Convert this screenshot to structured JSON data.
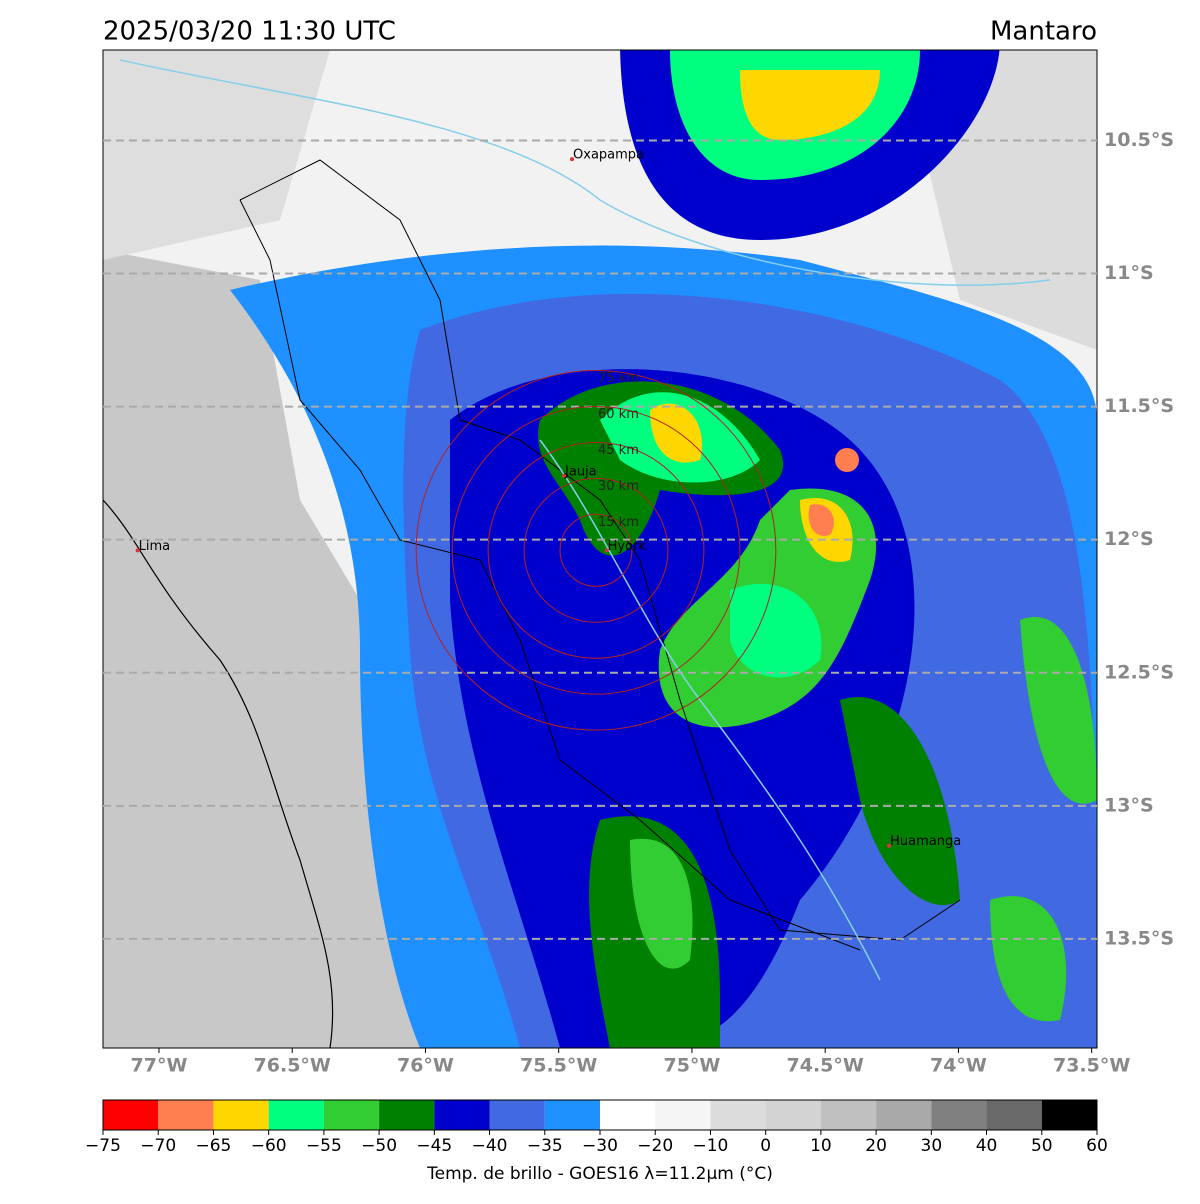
{
  "title": "2025/03/20 11:30 UTC",
  "region": "Mantaro",
  "map": {
    "lonlim": [
      -77.21,
      -73.48
    ],
    "latlim": [
      -10.16,
      -13.91
    ],
    "lonticks": [
      {
        "value": -77,
        "label": "77°W"
      },
      {
        "value": -76.5,
        "label": "76.5°W"
      },
      {
        "value": -76,
        "label": "76°W"
      },
      {
        "value": -75.5,
        "label": "75.5°W"
      },
      {
        "value": -75,
        "label": "75°W"
      },
      {
        "value": -74.5,
        "label": "74.5°W"
      },
      {
        "value": -74,
        "label": "74°W"
      },
      {
        "value": -73.5,
        "label": "73.5°W"
      }
    ],
    "latticks": [
      {
        "value": -10.5,
        "label": "10.5°S"
      },
      {
        "value": -11,
        "label": "11°S"
      },
      {
        "value": -11.5,
        "label": "11.5°S"
      },
      {
        "value": -12,
        "label": "12°S"
      },
      {
        "value": -12.5,
        "label": "12.5°S"
      },
      {
        "value": -13,
        "label": "13°S"
      },
      {
        "value": -13.5,
        "label": "13.5°S"
      }
    ],
    "cities": [
      {
        "name": "Oxapampa",
        "lon": -75.45,
        "lat": -10.57
      },
      {
        "name": "Lima",
        "lon": -77.08,
        "lat": -12.04
      },
      {
        "name": "Jauja",
        "lon": -75.48,
        "lat": -11.76
      },
      {
        "name": "Hyork",
        "lon": -75.32,
        "lat": -12.04
      },
      {
        "name": "Huamanga",
        "lon": -74.26,
        "lat": -13.15
      }
    ],
    "rings": {
      "center_lon": -75.36,
      "center_lat": -12.04,
      "radii_km": [
        15,
        30,
        45,
        60,
        75
      ],
      "labels": [
        "15 km",
        "30 km",
        "45 km",
        "60 km",
        "75 km"
      ]
    }
  },
  "colorbar": {
    "bounds": [
      {
        "value": -75,
        "label": "−75"
      },
      {
        "value": -70,
        "label": "−70"
      },
      {
        "value": -65,
        "label": "−65"
      },
      {
        "value": -60,
        "label": "−60"
      },
      {
        "value": -55,
        "label": "−55"
      },
      {
        "value": -50,
        "label": "−50"
      },
      {
        "value": -45,
        "label": "−45"
      },
      {
        "value": -40,
        "label": "−40"
      },
      {
        "value": -35,
        "label": "−35"
      },
      {
        "value": -30,
        "label": "−30"
      },
      {
        "value": -20,
        "label": "−20"
      },
      {
        "value": -10,
        "label": "−10"
      },
      0,
      10,
      20,
      30,
      40,
      50,
      60
    ],
    "colors": [
      "#ff0000",
      "#ff7f50",
      "#ffd700",
      "#00ff7f",
      "#32cd32",
      "#008000",
      "#0000cd",
      "#4169e1",
      "#1e90ff",
      "#ffffff",
      "#f5f5f5",
      "#dcdcdc",
      "#d3d3d3",
      "#c0c0c0",
      "#a9a9a9",
      "#808080",
      "#696969",
      "#000000"
    ],
    "label": "Temp. de brillo - GOES16 λ=11.2μm (°C)"
  }
}
